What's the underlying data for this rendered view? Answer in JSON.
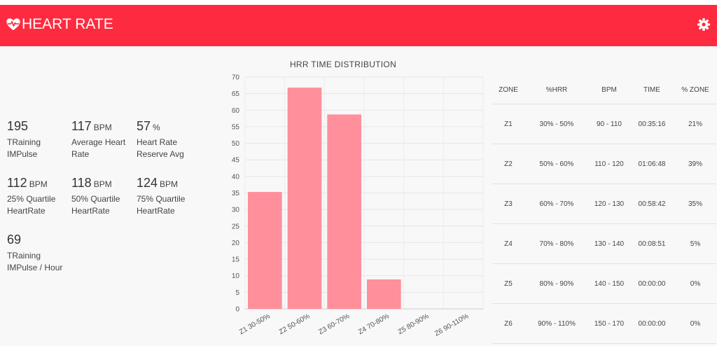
{
  "header": {
    "title": "HEART RATE",
    "heart_icon": "heartbeat-icon",
    "settings_icon": "gear-icon",
    "color": "#fe2b40"
  },
  "stats": [
    {
      "value": "195",
      "unit": "",
      "label_1": "TRaining",
      "label_2": "IMPulse"
    },
    {
      "value": "117",
      "unit": "BPM",
      "label_1": "Average Heart",
      "label_2": "Rate"
    },
    {
      "value": "57",
      "unit": "%",
      "label_1": "Heart Rate",
      "label_2": "Reserve Avg"
    },
    {
      "value": "112",
      "unit": "BPM",
      "label_1": "25% Quartile",
      "label_2": "HeartRate"
    },
    {
      "value": "118",
      "unit": "BPM",
      "label_1": "50% Quartile",
      "label_2": "HeartRate"
    },
    {
      "value": "124",
      "unit": "BPM",
      "label_1": "75% Quartile",
      "label_2": "HeartRate"
    },
    {
      "value": "69",
      "unit": "",
      "label_1": "TRaining",
      "label_2": "IMPulse / Hour"
    }
  ],
  "chart_data": {
    "type": "bar",
    "title": "HRR TIME DISTRIBUTION",
    "categories": [
      "Z1 30-50%",
      "Z2 50-60%",
      "Z3 60-70%",
      "Z4 70-80%",
      "Z5 80-90%",
      "Z6 90-110%"
    ],
    "values": [
      35.3,
      66.8,
      58.7,
      8.9,
      0,
      0
    ],
    "ylim": [
      0,
      70
    ],
    "yticks": [
      0,
      5,
      10,
      15,
      20,
      25,
      30,
      35,
      40,
      45,
      50,
      55,
      60,
      65,
      70
    ],
    "grid": true,
    "bar_color": "#fe8f9b"
  },
  "table": {
    "headers": [
      "ZONE",
      "%HRR",
      "BPM",
      "TIME",
      "% ZONE"
    ],
    "rows": [
      [
        "Z1",
        "30% - 50%",
        "90 - 110",
        "00:35:16",
        "21%"
      ],
      [
        "Z2",
        "50% - 60%",
        "110 - 120",
        "01:06:48",
        "39%"
      ],
      [
        "Z3",
        "60% - 70%",
        "120 - 130",
        "00:58:42",
        "35%"
      ],
      [
        "Z4",
        "70% - 80%",
        "130 - 140",
        "00:08:51",
        "5%"
      ],
      [
        "Z5",
        "80% - 90%",
        "140 - 150",
        "00:00:00",
        "0%"
      ],
      [
        "Z6",
        "90% - 110%",
        "150 - 170",
        "00:00:00",
        "0%"
      ]
    ]
  }
}
